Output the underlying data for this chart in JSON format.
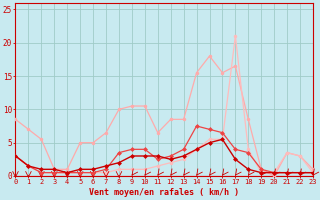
{
  "x": [
    0,
    1,
    2,
    3,
    4,
    5,
    6,
    7,
    8,
    9,
    10,
    11,
    12,
    13,
    14,
    15,
    16,
    17,
    18,
    19,
    20,
    21,
    22,
    23
  ],
  "line_salmon": [
    8.5,
    7,
    5.5,
    1,
    1,
    5,
    5,
    6.5,
    10,
    10.5,
    10.5,
    6.5,
    8.5,
    8.5,
    15.5,
    18,
    15.5,
    16.5,
    8.5,
    1,
    0,
    3.5,
    3,
    1
  ],
  "line_light2": [
    3,
    1.5,
    0.5,
    0.5,
    0.5,
    0.5,
    0.5,
    0.5,
    1,
    1,
    1,
    1.5,
    2,
    2.5,
    4,
    5.5,
    5.5,
    21,
    4,
    0.5,
    0.5,
    3.5,
    3,
    0.5
  ],
  "line_med": [
    3,
    1.5,
    0.5,
    0.5,
    0.5,
    0.5,
    0.5,
    1,
    3.5,
    4,
    4,
    2.5,
    3,
    4,
    7.5,
    7,
    6.5,
    4,
    3.5,
    1,
    0.5,
    0.5,
    0.5,
    0.5
  ],
  "line_dark": [
    3,
    1.5,
    1,
    1,
    0.5,
    1,
    1,
    1.5,
    2,
    3,
    3,
    3,
    2.5,
    3,
    4,
    5,
    5.5,
    2.5,
    1,
    0.5,
    0.5,
    0.5,
    0.5,
    0.5
  ],
  "bg_color": "#c8eaf0",
  "grid_color": "#a0ccc8",
  "color_salmon": "#ffaaaa",
  "color_light2": "#ffbbbb",
  "color_med": "#ee4444",
  "color_dark": "#cc0000",
  "xlabel": "Vent moyen/en rafales ( km/h )",
  "ylabel_ticks": [
    0,
    5,
    10,
    15,
    20,
    25
  ],
  "xticks": [
    0,
    1,
    2,
    3,
    4,
    5,
    6,
    7,
    8,
    9,
    10,
    11,
    12,
    13,
    14,
    15,
    16,
    17,
    18,
    19,
    20,
    21,
    22,
    23
  ],
  "xlim": [
    0,
    23
  ],
  "ylim": [
    0,
    26
  ]
}
